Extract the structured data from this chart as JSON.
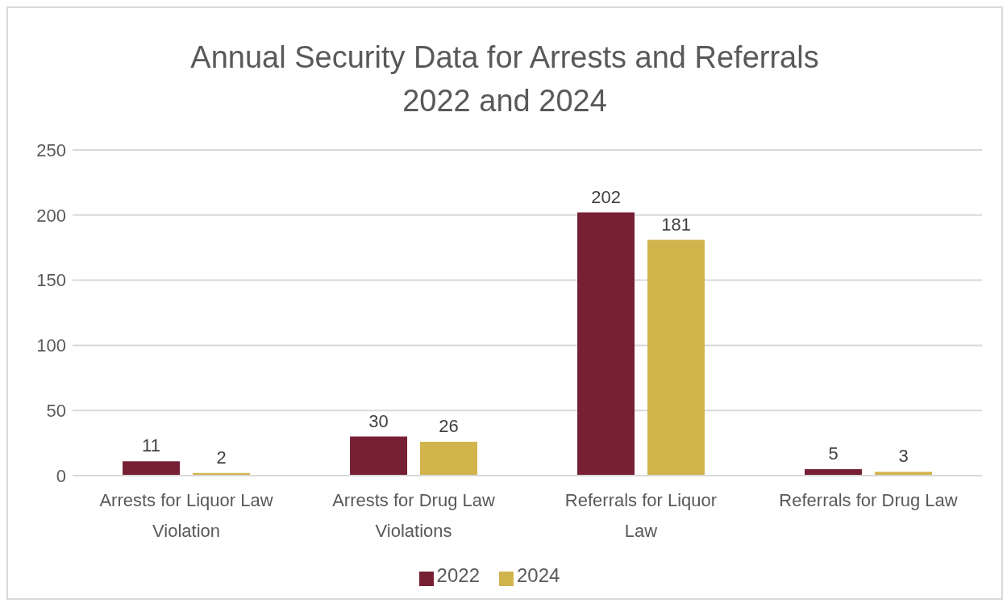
{
  "chart_data": {
    "type": "bar",
    "title": "Annual Security Data for Arrests and Referrals\n2022 and 2024",
    "categories": [
      "Arrests for Liquor Law Violation",
      "Arrests for Drug Law Violations",
      "Referrals for Liquor Law",
      "Referrals for Drug Law"
    ],
    "series": [
      {
        "name": "2022",
        "color": "#771f33",
        "values": [
          11,
          30,
          202,
          5
        ]
      },
      {
        "name": "2024",
        "color": "#d2b44c",
        "values": [
          2,
          26,
          181,
          3
        ]
      }
    ],
    "ylim": [
      0,
      250
    ],
    "yticks": [
      0,
      50,
      100,
      150,
      200,
      250
    ],
    "grid": "y",
    "legend": "bottom",
    "data_labels": true
  }
}
